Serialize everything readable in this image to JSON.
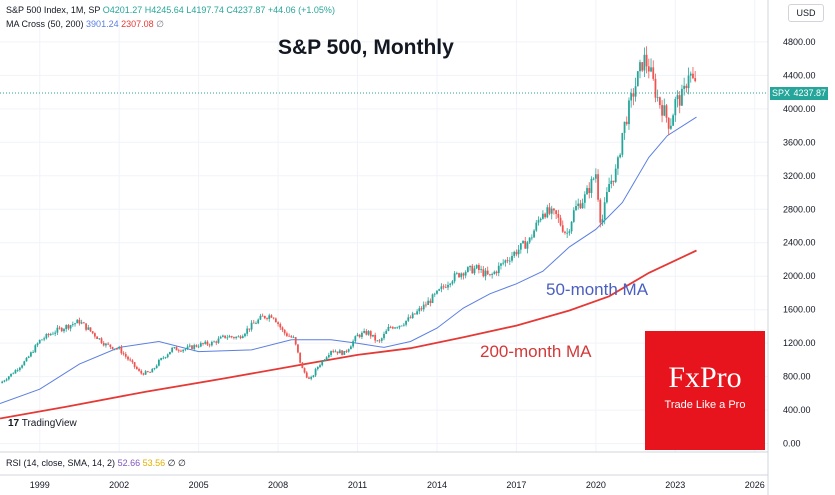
{
  "legend": {
    "symbol_line": "S&P 500 Index, 1M, SP",
    "ohlc": "O4201.27 H4245.64 L4197.74 C4237.87 +44.06 (+1.05%)",
    "ma_label": "MA Cross (50, 200)",
    "ma50_value": "3901.24",
    "ma200_value": "2307.08",
    "ma_extra": "∅"
  },
  "currency": "USD",
  "price_tag": {
    "symbol": "SPX",
    "price": "4237.87"
  },
  "watermark": "TradingView",
  "brand": {
    "logo": "FxPro",
    "tagline": "Trade Like a Pro"
  },
  "rsi_legend": {
    "label": "RSI (14, close, SMA, 14, 2)",
    "value1": "52.66",
    "value2": "53.56",
    "extra": "∅ ∅"
  },
  "colors": {
    "up": "#26a69a",
    "down": "#ef5350",
    "ma50": "#5b7fe0",
    "ma200": "#e53935",
    "brand": "#e8141d"
  },
  "chart_data": {
    "type": "line",
    "title": "S&P 500, Monthly",
    "annotations": [
      "50-month MA",
      "200-month MA"
    ],
    "x_ticks": [
      "1999",
      "2002",
      "2005",
      "2008",
      "2011",
      "2014",
      "2017",
      "2020",
      "2023",
      "2026"
    ],
    "y_ticks": [
      "0.00",
      "400.00",
      "800.00",
      "1200.00",
      "1600.00",
      "2000.00",
      "2400.00",
      "2800.00",
      "3200.00",
      "3600.00",
      "4000.00",
      "4400.00",
      "4800.00"
    ],
    "ylim": [
      -100,
      5300
    ],
    "xlim": [
      1997.5,
      2026.5
    ],
    "series": [
      {
        "name": "SPX",
        "x": [
          1997.5,
          1998.0,
          1998.5,
          1999.0,
          1999.5,
          2000.0,
          2000.5,
          2001.0,
          2001.5,
          2002.0,
          2002.5,
          2002.8,
          2003.2,
          2003.5,
          2004.0,
          2004.5,
          2005.0,
          2005.5,
          2006.0,
          2006.5,
          2007.0,
          2007.4,
          2007.8,
          2008.2,
          2008.6,
          2008.9,
          2009.2,
          2009.5,
          2010.0,
          2010.5,
          2011.0,
          2011.4,
          2011.8,
          2012.2,
          2012.6,
          2013.0,
          2013.5,
          2014.0,
          2014.5,
          2015.0,
          2015.5,
          2016.0,
          2016.5,
          2017.0,
          2017.5,
          2018.0,
          2018.5,
          2018.9,
          2019.2,
          2019.6,
          2020.0,
          2020.2,
          2020.5,
          2020.8,
          2021.0,
          2021.4,
          2021.8,
          2022.0,
          2022.3,
          2022.6,
          2022.8,
          2023.0,
          2023.3,
          2023.5,
          2023.8
        ],
        "values": [
          720,
          850,
          1000,
          1230,
          1330,
          1400,
          1460,
          1320,
          1180,
          1130,
          950,
          840,
          850,
          980,
          1130,
          1130,
          1180,
          1200,
          1280,
          1270,
          1410,
          1510,
          1540,
          1330,
          1250,
          900,
          750,
          920,
          1120,
          1080,
          1290,
          1330,
          1200,
          1390,
          1420,
          1500,
          1640,
          1790,
          1960,
          2060,
          2090,
          1990,
          2160,
          2300,
          2430,
          2780,
          2720,
          2500,
          2800,
          2950,
          3230,
          2600,
          3100,
          3270,
          3710,
          4180,
          4600,
          4500,
          4150,
          3950,
          3800,
          4080,
          4150,
          4450,
          4237.87
        ]
      },
      {
        "name": "MA 50",
        "x": [
          1997.5,
          1999.0,
          2000.5,
          2002.0,
          2003.5,
          2005.0,
          2007.0,
          2008.5,
          2010.0,
          2011.0,
          2012.0,
          2013.0,
          2014.0,
          2015.0,
          2016.0,
          2017.0,
          2018.0,
          2019.0,
          2020.0,
          2021.0,
          2022.0,
          2022.7,
          2023.8
        ],
        "values": [
          480,
          650,
          950,
          1150,
          1220,
          1100,
          1120,
          1240,
          1240,
          1200,
          1150,
          1220,
          1380,
          1620,
          1790,
          1910,
          2060,
          2350,
          2560,
          2880,
          3420,
          3680,
          3901
        ]
      },
      {
        "name": "MA 200",
        "x": [
          1997.5,
          2000.0,
          2003.0,
          2006.0,
          2009.0,
          2011.0,
          2013.0,
          2015.0,
          2017.0,
          2019.0,
          2020.5,
          2022.0,
          2023.8
        ],
        "values": [
          300,
          440,
          620,
          780,
          950,
          1060,
          1140,
          1270,
          1410,
          1590,
          1760,
          2040,
          2307
        ]
      }
    ]
  }
}
